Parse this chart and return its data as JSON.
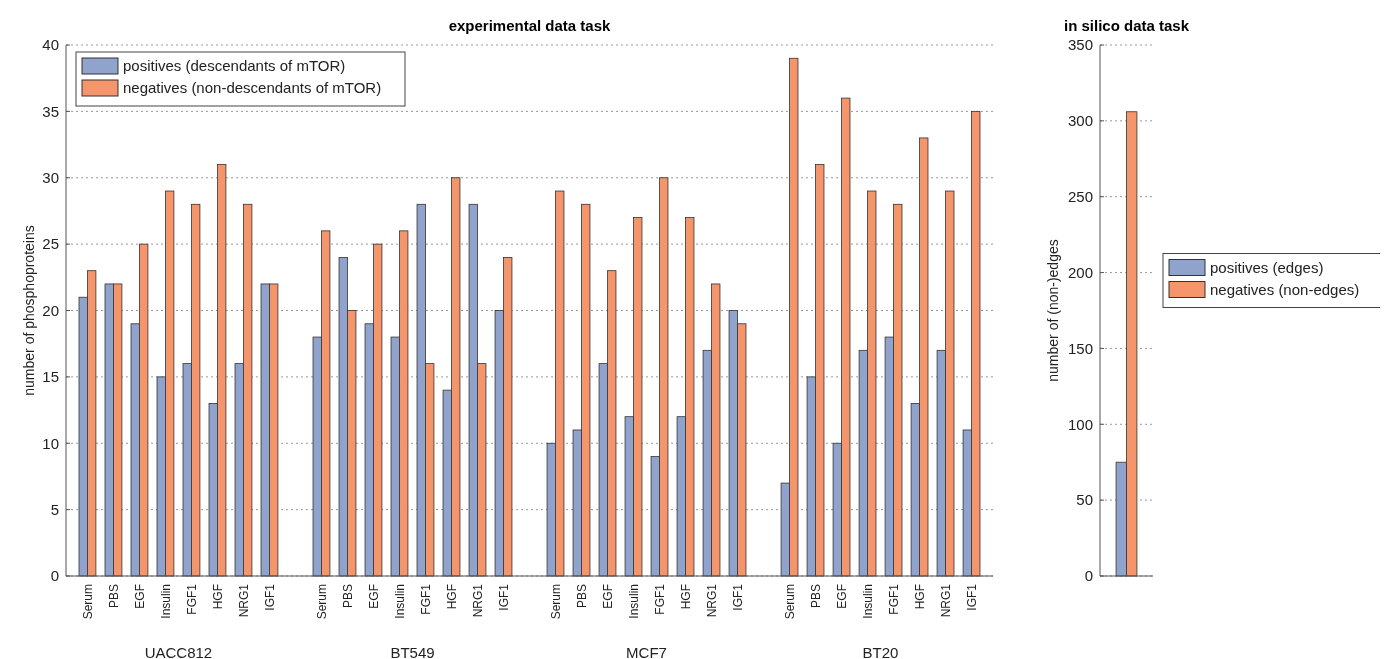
{
  "chart_data": [
    {
      "type": "bar",
      "title": "experimental data task",
      "ylabel": "number of phosphoproteins",
      "categories": [
        "Serum",
        "PBS",
        "EGF",
        "Insulin",
        "FGF1",
        "HGF",
        "NRG1",
        "IGF1",
        null,
        "Serum",
        "PBS",
        "EGF",
        "Insulin",
        "FGF1",
        "HGF",
        "NRG1",
        "IGF1",
        null,
        "Serum",
        "PBS",
        "EGF",
        "Insulin",
        "FGF1",
        "HGF",
        "NRG1",
        "IGF1",
        null,
        "Serum",
        "PBS",
        "EGF",
        "Insulin",
        "FGF1",
        "HGF",
        "NRG1",
        "IGF1"
      ],
      "series": [
        {
          "name": "positives (descendants of mTOR)",
          "color": "#8fa3cd",
          "values": [
            21,
            22,
            19,
            15,
            16,
            13,
            16,
            22,
            null,
            18,
            24,
            19,
            18,
            28,
            14,
            28,
            20,
            null,
            10,
            11,
            16,
            12,
            9,
            12,
            17,
            20,
            null,
            7,
            15,
            10,
            17,
            18,
            13,
            17,
            11
          ]
        },
        {
          "name": "negatives (non-descendants of mTOR)",
          "color": "#f4956c",
          "values": [
            23,
            22,
            25,
            29,
            28,
            31,
            28,
            22,
            null,
            26,
            20,
            25,
            26,
            16,
            30,
            16,
            24,
            null,
            29,
            28,
            23,
            27,
            30,
            27,
            22,
            19,
            null,
            39,
            31,
            36,
            29,
            28,
            33,
            29,
            35
          ]
        }
      ],
      "annotations": [
        "UACC812",
        "BT549",
        "MCF7",
        "BT20"
      ],
      "ylim": [
        0,
        40
      ],
      "yticks": [
        0,
        5,
        10,
        15,
        20,
        25,
        30,
        35,
        40
      ],
      "grid": "y",
      "legend": "top left"
    },
    {
      "type": "bar",
      "title": "in silico data task",
      "ylabel": "number of (non-)edges",
      "categories": [
        null
      ],
      "series": [
        {
          "name": "positives (edges)",
          "color": "#8fa3cd",
          "values": [
            75
          ]
        },
        {
          "name": "negatives (non-edges)",
          "color": "#f4956c",
          "values": [
            306
          ]
        }
      ],
      "ylim": [
        0,
        350
      ],
      "yticks": [
        0,
        50,
        100,
        150,
        200,
        250,
        300,
        350
      ],
      "grid": "y",
      "legend": "right"
    }
  ]
}
